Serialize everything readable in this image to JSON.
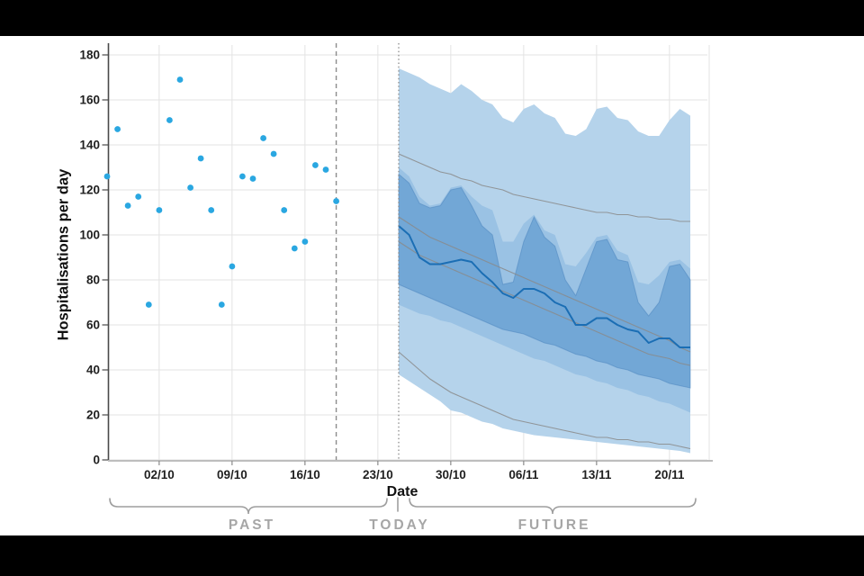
{
  "chart_data": {
    "type": "area",
    "subtype": "forecast-fan-with-observed-scatter",
    "title": "",
    "xlabel": "Date",
    "ylabel": "Hospitalisations per day",
    "ylim": [
      0,
      180
    ],
    "yticks": [
      0,
      20,
      40,
      60,
      80,
      100,
      120,
      140,
      160,
      180
    ],
    "xticks": [
      "02/10",
      "09/10",
      "16/10",
      "23/10",
      "30/10",
      "06/11",
      "13/11",
      "20/11"
    ],
    "grid": true,
    "legend": "none",
    "vline_dashed_date": "19/10",
    "vline_dotted_date": "25/10",
    "annotations": {
      "past": "PAST",
      "today": "TODAY",
      "future": "FUTURE"
    },
    "observed": {
      "dates": [
        "27/09",
        "28/09",
        "29/09",
        "30/09",
        "01/10",
        "02/10",
        "03/10",
        "04/10",
        "05/10",
        "06/10",
        "07/10",
        "08/10",
        "09/10",
        "10/10",
        "11/10",
        "12/10",
        "13/10",
        "14/10",
        "15/10",
        "16/10",
        "17/10",
        "18/10",
        "19/10"
      ],
      "values": [
        126,
        147,
        113,
        117,
        69,
        111,
        151,
        169,
        121,
        134,
        111,
        69,
        86,
        126,
        125,
        143,
        136,
        111,
        94,
        97,
        131,
        129,
        115
      ]
    },
    "forecast": {
      "dates": [
        "25/10",
        "26/10",
        "27/10",
        "28/10",
        "29/10",
        "30/10",
        "31/10",
        "01/11",
        "02/11",
        "03/11",
        "04/11",
        "05/11",
        "06/11",
        "07/11",
        "08/11",
        "09/11",
        "10/11",
        "11/11",
        "12/11",
        "13/11",
        "14/11",
        "15/11",
        "16/11",
        "17/11",
        "18/11",
        "19/11",
        "20/11",
        "21/11",
        "22/11"
      ],
      "outer_top": [
        174,
        172,
        170,
        167,
        165,
        163,
        167,
        164,
        160,
        158,
        152,
        150,
        156,
        158,
        154,
        152,
        145,
        144,
        147,
        156,
        157,
        152,
        151,
        146,
        144,
        144,
        151,
        156,
        153
      ],
      "outer_bottom": [
        38,
        35,
        32,
        29,
        26,
        22,
        21,
        19,
        17,
        16,
        14,
        13,
        12,
        11,
        10.5,
        10,
        9.5,
        9,
        8.5,
        8,
        7.5,
        7,
        6.5,
        6,
        5.5,
        5,
        4.5,
        4,
        3
      ],
      "middle_top": [
        130,
        126,
        117,
        113,
        114,
        121,
        122,
        117,
        113,
        111,
        97,
        97,
        105,
        109,
        102,
        100,
        87,
        86,
        92,
        99,
        100,
        93,
        91,
        79,
        78,
        82,
        88,
        89,
        85
      ],
      "middle_bottom": [
        69,
        67,
        65,
        64,
        62,
        61,
        59,
        57,
        55,
        53,
        51,
        49,
        47,
        45,
        44,
        42,
        40,
        38,
        37,
        35,
        34,
        32,
        31,
        29,
        28,
        26,
        25,
        23,
        21
      ],
      "inner_top": [
        127,
        123,
        114,
        112,
        113,
        120,
        121,
        113,
        104,
        100,
        78,
        79,
        97,
        108,
        99,
        95,
        80,
        73,
        85,
        97,
        98,
        89,
        88,
        70,
        64,
        70,
        86,
        87,
        80
      ],
      "inner_bottom": [
        78,
        76,
        74,
        72,
        70,
        68,
        66,
        64,
        62,
        60,
        58,
        57,
        56,
        54,
        52,
        51,
        49,
        47,
        46,
        44,
        43,
        41,
        40,
        38,
        37,
        36,
        34,
        33,
        32
      ],
      "median": [
        104,
        100,
        90,
        87,
        87,
        88,
        89,
        88,
        83,
        79,
        74,
        72,
        76,
        76,
        74,
        70,
        68,
        60,
        60,
        63,
        63,
        60,
        58,
        57,
        52,
        54,
        54,
        50,
        50
      ],
      "q_upper": [
        136,
        134,
        132,
        130,
        128,
        127,
        125,
        124,
        122,
        121,
        120,
        118,
        117,
        116,
        115,
        114,
        113,
        112,
        111,
        110,
        110,
        109,
        109,
        108,
        108,
        107,
        107,
        106,
        106
      ],
      "q_mid_upper": [
        108,
        105,
        102,
        99,
        97,
        95,
        93,
        91,
        89,
        87,
        85,
        83,
        81,
        79,
        77,
        75,
        73,
        71,
        69,
        67,
        65,
        63,
        61,
        59,
        57,
        55,
        53,
        50,
        48
      ],
      "q_mid_lower": [
        97,
        94,
        91,
        89,
        87,
        85,
        83,
        81,
        79,
        77,
        75,
        73,
        71,
        69,
        67,
        65,
        63,
        61,
        59,
        57,
        55,
        53,
        51,
        49,
        47,
        46,
        45,
        43,
        42
      ],
      "q_lower": [
        48,
        44,
        40,
        36,
        33,
        30,
        28,
        26,
        24,
        22,
        20,
        18,
        17,
        16,
        15,
        14,
        13,
        12,
        11,
        10,
        10,
        9,
        9,
        8,
        8,
        7,
        7,
        6,
        5
      ]
    },
    "colors": {
      "background": "#000000",
      "panel": "#ffffff",
      "observed_dot": "#2aa7e1",
      "band_outer": "#b5d3eb",
      "band_middle": "#9ac2e4",
      "band_inner": "#72a7d6",
      "band_inner_stroke": "#4e86bf",
      "median_line": "#1b6eb4",
      "quantile_line": "#8a8a8a",
      "grid": "#e3e3e3",
      "y_axis": "#4a4a4a",
      "x_axis": "#bdbdbd",
      "tick_text": "#1f1f1f",
      "vline": "#8c8c8c",
      "brace": "#9e9e9e",
      "annotation_text": "#a6a6a6"
    }
  }
}
